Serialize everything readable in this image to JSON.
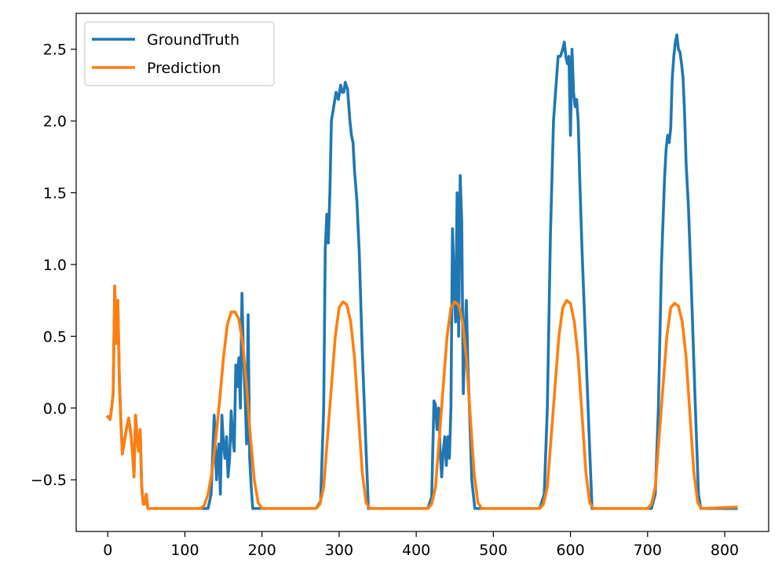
{
  "chart_data": {
    "type": "line",
    "title": "",
    "xlabel": "",
    "ylabel": "",
    "xlim": [
      -41,
      857
    ],
    "ylim": [
      -0.86,
      2.75
    ],
    "xticks": [
      0,
      100,
      200,
      300,
      400,
      500,
      600,
      700,
      800
    ],
    "yticks": [
      -0.5,
      0.0,
      0.5,
      1.0,
      1.5,
      2.0,
      2.5
    ],
    "xtick_labels": [
      "0",
      "100",
      "200",
      "300",
      "400",
      "500",
      "600",
      "700",
      "800"
    ],
    "ytick_labels": [
      "−0.5",
      "0.0",
      "0.5",
      "1.0",
      "1.5",
      "2.0",
      "2.5"
    ],
    "grid": false,
    "legend_position": "upper-left",
    "series": [
      {
        "name": "GroundTruth",
        "color": "#1f77b4",
        "points": [
          [
            0,
            -0.06
          ],
          [
            3,
            -0.08
          ],
          [
            5,
            0.0
          ],
          [
            7,
            0.1
          ],
          [
            9,
            0.85
          ],
          [
            11,
            0.45
          ],
          [
            13,
            0.75
          ],
          [
            15,
            0.2
          ],
          [
            17,
            -0.1
          ],
          [
            19,
            -0.32
          ],
          [
            21,
            -0.25
          ],
          [
            24,
            -0.15
          ],
          [
            27,
            -0.07
          ],
          [
            30,
            -0.18
          ],
          [
            32,
            -0.3
          ],
          [
            34,
            -0.48
          ],
          [
            36,
            -0.05
          ],
          [
            38,
            -0.2
          ],
          [
            40,
            -0.3
          ],
          [
            42,
            -0.15
          ],
          [
            44,
            -0.55
          ],
          [
            46,
            -0.67
          ],
          [
            48,
            -0.67
          ],
          [
            50,
            -0.6
          ],
          [
            52,
            -0.7
          ],
          [
            130,
            -0.7
          ],
          [
            134,
            -0.6
          ],
          [
            138,
            -0.05
          ],
          [
            141,
            -0.5
          ],
          [
            144,
            -0.25
          ],
          [
            146,
            -0.6
          ],
          [
            148,
            -0.05
          ],
          [
            150,
            -0.25
          ],
          [
            152,
            -0.35
          ],
          [
            154,
            -0.2
          ],
          [
            156,
            -0.48
          ],
          [
            158,
            -0.35
          ],
          [
            160,
            -0.02
          ],
          [
            162,
            -0.2
          ],
          [
            164,
            -0.3
          ],
          [
            166,
            0.3
          ],
          [
            168,
            0.15
          ],
          [
            170,
            0.35
          ],
          [
            172,
            0.0
          ],
          [
            174,
            0.8
          ],
          [
            176,
            0.35
          ],
          [
            178,
            0.1
          ],
          [
            180,
            -0.25
          ],
          [
            182,
            0.65
          ],
          [
            184,
            -0.35
          ],
          [
            186,
            -0.55
          ],
          [
            188,
            -0.7
          ],
          [
            270,
            -0.7
          ],
          [
            276,
            -0.65
          ],
          [
            280,
            0.0
          ],
          [
            282,
            1.1
          ],
          [
            284,
            1.35
          ],
          [
            286,
            1.15
          ],
          [
            288,
            1.5
          ],
          [
            290,
            2.0
          ],
          [
            293,
            2.1
          ],
          [
            296,
            2.2
          ],
          [
            299,
            2.15
          ],
          [
            302,
            2.25
          ],
          [
            304,
            2.2
          ],
          [
            306,
            2.2
          ],
          [
            308,
            2.27
          ],
          [
            311,
            2.22
          ],
          [
            314,
            2.0
          ],
          [
            316,
            1.9
          ],
          [
            318,
            1.85
          ],
          [
            320,
            1.65
          ],
          [
            323,
            1.45
          ],
          [
            326,
            1.1
          ],
          [
            330,
            0.4
          ],
          [
            335,
            -0.3
          ],
          [
            338,
            -0.7
          ],
          [
            415,
            -0.7
          ],
          [
            420,
            -0.62
          ],
          [
            423,
            0.05
          ],
          [
            425,
            0.02
          ],
          [
            427,
            -0.15
          ],
          [
            429,
            0.0
          ],
          [
            431,
            -0.3
          ],
          [
            433,
            -0.48
          ],
          [
            435,
            -0.3
          ],
          [
            437,
            -0.2
          ],
          [
            439,
            -0.4
          ],
          [
            441,
            -0.2
          ],
          [
            443,
            -0.35
          ],
          [
            445,
            0.0
          ],
          [
            447,
            1.25
          ],
          [
            449,
            0.9
          ],
          [
            451,
            0.6
          ],
          [
            453,
            1.5
          ],
          [
            455,
            0.5
          ],
          [
            457,
            1.62
          ],
          [
            459,
            1.3
          ],
          [
            461,
            0.1
          ],
          [
            463,
            0.5
          ],
          [
            465,
            0.75
          ],
          [
            467,
            0.3
          ],
          [
            469,
            0.0
          ],
          [
            472,
            -0.5
          ],
          [
            476,
            -0.7
          ],
          [
            560,
            -0.7
          ],
          [
            566,
            -0.6
          ],
          [
            570,
            0.0
          ],
          [
            574,
            1.2
          ],
          [
            578,
            2.0
          ],
          [
            582,
            2.3
          ],
          [
            584,
            2.45
          ],
          [
            587,
            2.45
          ],
          [
            590,
            2.5
          ],
          [
            592,
            2.55
          ],
          [
            594,
            2.45
          ],
          [
            596,
            2.4
          ],
          [
            598,
            2.45
          ],
          [
            600,
            1.9
          ],
          [
            602,
            2.5
          ],
          [
            604,
            2.2
          ],
          [
            606,
            2.1
          ],
          [
            608,
            2.15
          ],
          [
            610,
            2.0
          ],
          [
            612,
            1.6
          ],
          [
            615,
            1.1
          ],
          [
            620,
            0.4
          ],
          [
            625,
            -0.3
          ],
          [
            628,
            -0.7
          ],
          [
            705,
            -0.7
          ],
          [
            710,
            -0.6
          ],
          [
            714,
            0.0
          ],
          [
            718,
            1.0
          ],
          [
            722,
            1.6
          ],
          [
            724,
            1.8
          ],
          [
            726,
            1.9
          ],
          [
            728,
            1.85
          ],
          [
            730,
            1.95
          ],
          [
            732,
            2.3
          ],
          [
            734,
            2.45
          ],
          [
            736,
            2.55
          ],
          [
            738,
            2.6
          ],
          [
            740,
            2.5
          ],
          [
            742,
            2.48
          ],
          [
            744,
            2.4
          ],
          [
            746,
            2.3
          ],
          [
            748,
            2.05
          ],
          [
            750,
            1.7
          ],
          [
            753,
            1.4
          ],
          [
            757,
            0.8
          ],
          [
            762,
            0.0
          ],
          [
            766,
            -0.6
          ],
          [
            769,
            -0.7
          ],
          [
            815,
            -0.7
          ]
        ]
      },
      {
        "name": "Prediction",
        "color": "#ff7f0e",
        "points": [
          [
            0,
            -0.06
          ],
          [
            3,
            -0.08
          ],
          [
            5,
            0.0
          ],
          [
            7,
            0.1
          ],
          [
            9,
            0.85
          ],
          [
            11,
            0.45
          ],
          [
            13,
            0.75
          ],
          [
            15,
            0.2
          ],
          [
            17,
            -0.1
          ],
          [
            19,
            -0.32
          ],
          [
            21,
            -0.25
          ],
          [
            24,
            -0.15
          ],
          [
            27,
            -0.07
          ],
          [
            30,
            -0.18
          ],
          [
            32,
            -0.3
          ],
          [
            34,
            -0.48
          ],
          [
            36,
            -0.05
          ],
          [
            38,
            -0.2
          ],
          [
            40,
            -0.3
          ],
          [
            42,
            -0.15
          ],
          [
            44,
            -0.55
          ],
          [
            46,
            -0.67
          ],
          [
            48,
            -0.67
          ],
          [
            50,
            -0.6
          ],
          [
            52,
            -0.7
          ],
          [
            120,
            -0.7
          ],
          [
            125,
            -0.68
          ],
          [
            130,
            -0.6
          ],
          [
            135,
            -0.45
          ],
          [
            140,
            -0.22
          ],
          [
            145,
            0.05
          ],
          [
            150,
            0.35
          ],
          [
            155,
            0.58
          ],
          [
            160,
            0.67
          ],
          [
            165,
            0.67
          ],
          [
            170,
            0.62
          ],
          [
            175,
            0.45
          ],
          [
            180,
            0.15
          ],
          [
            185,
            -0.2
          ],
          [
            190,
            -0.5
          ],
          [
            195,
            -0.66
          ],
          [
            200,
            -0.7
          ],
          [
            210,
            -0.7
          ],
          [
            270,
            -0.7
          ],
          [
            275,
            -0.67
          ],
          [
            280,
            -0.55
          ],
          [
            285,
            -0.2
          ],
          [
            290,
            0.15
          ],
          [
            295,
            0.5
          ],
          [
            300,
            0.7
          ],
          [
            305,
            0.74
          ],
          [
            310,
            0.72
          ],
          [
            315,
            0.6
          ],
          [
            320,
            0.35
          ],
          [
            325,
            -0.05
          ],
          [
            330,
            -0.45
          ],
          [
            335,
            -0.66
          ],
          [
            340,
            -0.7
          ],
          [
            350,
            -0.7
          ],
          [
            415,
            -0.7
          ],
          [
            420,
            -0.67
          ],
          [
            425,
            -0.55
          ],
          [
            430,
            -0.2
          ],
          [
            435,
            0.15
          ],
          [
            440,
            0.5
          ],
          [
            445,
            0.7
          ],
          [
            450,
            0.74
          ],
          [
            455,
            0.72
          ],
          [
            460,
            0.6
          ],
          [
            465,
            0.35
          ],
          [
            470,
            -0.05
          ],
          [
            475,
            -0.45
          ],
          [
            480,
            -0.66
          ],
          [
            485,
            -0.7
          ],
          [
            495,
            -0.7
          ],
          [
            560,
            -0.7
          ],
          [
            565,
            -0.67
          ],
          [
            570,
            -0.55
          ],
          [
            575,
            -0.2
          ],
          [
            580,
            0.15
          ],
          [
            585,
            0.5
          ],
          [
            590,
            0.7
          ],
          [
            595,
            0.75
          ],
          [
            600,
            0.73
          ],
          [
            605,
            0.6
          ],
          [
            610,
            0.35
          ],
          [
            615,
            -0.05
          ],
          [
            620,
            -0.45
          ],
          [
            625,
            -0.66
          ],
          [
            630,
            -0.7
          ],
          [
            640,
            -0.7
          ],
          [
            700,
            -0.7
          ],
          [
            705,
            -0.67
          ],
          [
            710,
            -0.55
          ],
          [
            715,
            -0.2
          ],
          [
            720,
            0.15
          ],
          [
            725,
            0.5
          ],
          [
            730,
            0.7
          ],
          [
            735,
            0.73
          ],
          [
            740,
            0.71
          ],
          [
            745,
            0.6
          ],
          [
            750,
            0.35
          ],
          [
            755,
            -0.05
          ],
          [
            760,
            -0.45
          ],
          [
            765,
            -0.66
          ],
          [
            770,
            -0.7
          ],
          [
            815,
            -0.69
          ]
        ]
      }
    ]
  }
}
